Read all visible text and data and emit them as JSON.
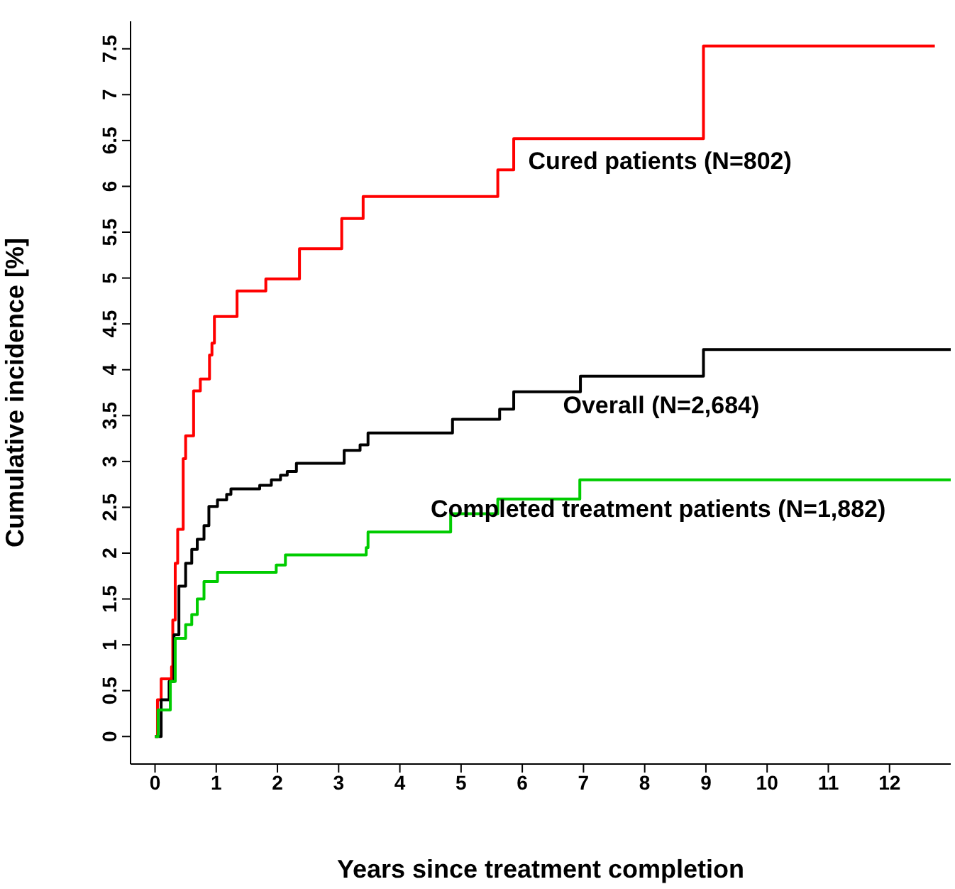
{
  "chart_data": {
    "type": "step",
    "xlabel": "Years since treatment completion",
    "ylabel": "Cumulative incidence [%]",
    "xlim": [
      -0.4,
      13.0
    ],
    "ylim": [
      -0.3,
      7.8
    ],
    "xticks": [
      0,
      1,
      2,
      3,
      4,
      5,
      6,
      7,
      8,
      9,
      10,
      11,
      12
    ],
    "yticks": [
      0,
      0.5,
      1,
      1.5,
      2,
      2.5,
      3,
      3.5,
      4,
      4.5,
      5,
      5.5,
      6,
      6.5,
      7,
      7.5
    ],
    "grid": false,
    "legend": false,
    "marker": "none",
    "line_style": "solid",
    "series": [
      {
        "name": "Cured patients (N=802)",
        "color": "#ff0000",
        "x": [
          0,
          0.04,
          0.1,
          0.27,
          0.29,
          0.33,
          0.37,
          0.46,
          0.5,
          0.63,
          0.74,
          0.89,
          0.93,
          0.97,
          1.34,
          1.81,
          2.36,
          3.05,
          3.4,
          5.6,
          5.86,
          8.96,
          12.74
        ],
        "values": [
          0,
          0.4,
          0.63,
          0.76,
          1.27,
          1.89,
          2.26,
          3.03,
          3.28,
          3.77,
          3.9,
          4.16,
          4.29,
          4.58,
          4.86,
          4.99,
          5.32,
          5.65,
          5.89,
          6.18,
          6.52,
          7.53,
          7.53
        ]
      },
      {
        "name": "Overall (N=2,684)",
        "color": "#000000",
        "x": [
          0,
          0.1,
          0.23,
          0.31,
          0.39,
          0.5,
          0.6,
          0.69,
          0.8,
          0.88,
          1.02,
          1.17,
          1.24,
          1.71,
          1.9,
          2.05,
          2.16,
          2.31,
          3.09,
          3.35,
          3.48,
          4.86,
          5.63,
          5.86,
          6.95,
          8.96,
          13.0
        ],
        "values": [
          0,
          0.4,
          0.6,
          1.11,
          1.64,
          1.89,
          2.04,
          2.15,
          2.3,
          2.51,
          2.58,
          2.64,
          2.7,
          2.74,
          2.8,
          2.85,
          2.89,
          2.98,
          3.12,
          3.18,
          3.31,
          3.46,
          3.57,
          3.76,
          3.93,
          4.22,
          4.22
        ]
      },
      {
        "name": "Completed treatment patients (N=1,882)",
        "color": "#00cc00",
        "x": [
          0,
          0.05,
          0.25,
          0.33,
          0.5,
          0.6,
          0.69,
          0.8,
          1.02,
          1.98,
          2.13,
          3.45,
          3.48,
          4.83,
          5.6,
          6.94,
          13.0
        ],
        "values": [
          0,
          0.29,
          0.6,
          1.07,
          1.22,
          1.33,
          1.5,
          1.69,
          1.79,
          1.87,
          1.98,
          2.06,
          2.23,
          2.43,
          2.59,
          2.8,
          2.8
        ]
      }
    ]
  }
}
